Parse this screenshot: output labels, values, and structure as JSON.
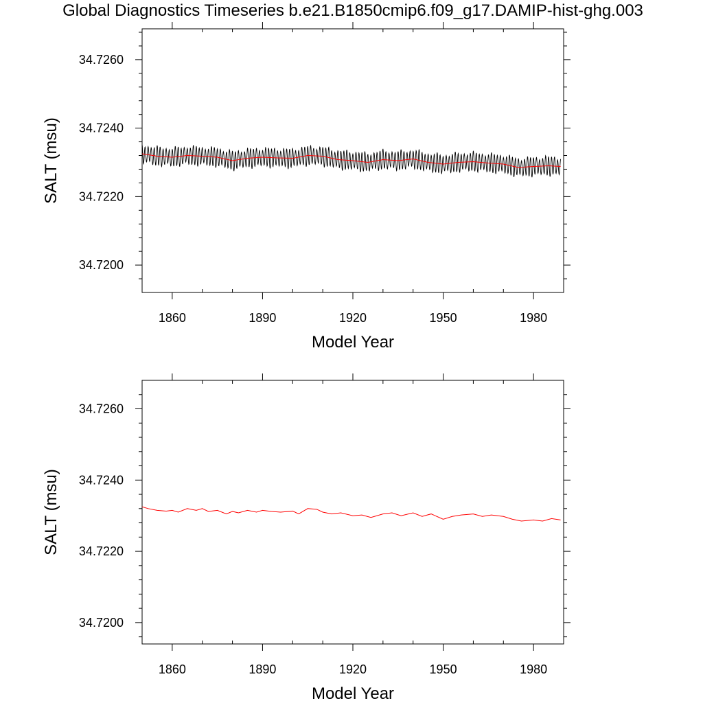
{
  "figure": {
    "title": "Global Diagnostics Timeseries b.e21.B1850cmip6.f09_g17.DAMIP-hist-ghg.003"
  },
  "colors": {
    "monthly_line": "#000000",
    "annual_line": "#ff0000",
    "frame": "#000000",
    "background": "#ffffff"
  },
  "chart_data": [
    {
      "type": "line",
      "xlabel": "Model Year",
      "ylabel": "SALT (msu)",
      "xlim": [
        1850,
        1990
      ],
      "ylim": [
        34.7192,
        34.7269
      ],
      "x_ticks": [
        1860,
        1890,
        1920,
        1950,
        1980
      ],
      "x_tick_labels": [
        "1860",
        "1890",
        "1920",
        "1950",
        "1980"
      ],
      "y_ticks": [
        34.72,
        34.722,
        34.724,
        34.726
      ],
      "y_tick_labels": [
        "34.7200",
        "34.7220",
        "34.7240",
        "34.7260"
      ],
      "grid": false,
      "legend": "none",
      "series": [
        {
          "key": "monthly",
          "resolution": "monthly",
          "seasonal_amplitude": 0.00025,
          "x": [
            1850,
            1855,
            1860,
            1865,
            1870,
            1875,
            1880,
            1885,
            1890,
            1895,
            1900,
            1905,
            1910,
            1915,
            1920,
            1925,
            1930,
            1935,
            1940,
            1945,
            1950,
            1955,
            1960,
            1965,
            1970,
            1975,
            1980,
            1985,
            1989
          ],
          "y": [
            34.72325,
            34.72318,
            34.72315,
            34.7232,
            34.72318,
            34.72315,
            34.72305,
            34.72312,
            34.72315,
            34.72313,
            34.72312,
            34.7232,
            34.72318,
            34.72308,
            34.72305,
            34.723,
            34.72308,
            34.72305,
            34.7231,
            34.723,
            34.72295,
            34.723,
            34.72302,
            34.72298,
            34.72295,
            34.72285,
            34.72288,
            34.7229,
            34.72288
          ]
        },
        {
          "key": "annual",
          "resolution": "annual",
          "x": [
            1850,
            1855,
            1860,
            1865,
            1870,
            1875,
            1880,
            1885,
            1890,
            1895,
            1900,
            1905,
            1910,
            1915,
            1920,
            1925,
            1930,
            1935,
            1940,
            1945,
            1950,
            1955,
            1960,
            1965,
            1970,
            1975,
            1980,
            1985,
            1989
          ],
          "y": [
            34.72325,
            34.72318,
            34.72315,
            34.7232,
            34.72318,
            34.72315,
            34.72305,
            34.72312,
            34.72315,
            34.72313,
            34.72312,
            34.7232,
            34.72318,
            34.72308,
            34.72305,
            34.723,
            34.72308,
            34.72305,
            34.7231,
            34.723,
            34.72295,
            34.723,
            34.72302,
            34.72298,
            34.72295,
            34.72285,
            34.72288,
            34.7229,
            34.72288
          ]
        }
      ]
    },
    {
      "type": "line",
      "xlabel": "Model Year",
      "ylabel": "SALT (msu)",
      "xlim": [
        1850,
        1990
      ],
      "ylim": [
        34.7194,
        34.7268
      ],
      "x_ticks": [
        1860,
        1890,
        1920,
        1950,
        1980
      ],
      "x_tick_labels": [
        "1860",
        "1890",
        "1920",
        "1950",
        "1980"
      ],
      "y_ticks": [
        34.72,
        34.722,
        34.724,
        34.726
      ],
      "y_tick_labels": [
        "34.7200",
        "34.7220",
        "34.7240",
        "34.7260"
      ],
      "grid": false,
      "legend": "none",
      "series": [
        {
          "key": "annual",
          "resolution": "annual",
          "x": [
            1850,
            1852,
            1855,
            1858,
            1860,
            1862,
            1865,
            1868,
            1870,
            1872,
            1875,
            1878,
            1880,
            1882,
            1885,
            1888,
            1890,
            1893,
            1896,
            1900,
            1902,
            1905,
            1908,
            1910,
            1913,
            1916,
            1920,
            1923,
            1926,
            1930,
            1933,
            1936,
            1940,
            1943,
            1946,
            1950,
            1953,
            1956,
            1960,
            1963,
            1966,
            1970,
            1973,
            1976,
            1980,
            1983,
            1986,
            1989
          ],
          "y": [
            34.72325,
            34.7232,
            34.72315,
            34.72313,
            34.72315,
            34.7231,
            34.7232,
            34.72315,
            34.7232,
            34.72312,
            34.72315,
            34.72305,
            34.72312,
            34.72308,
            34.72315,
            34.7231,
            34.72315,
            34.72312,
            34.7231,
            34.72313,
            34.72305,
            34.7232,
            34.72318,
            34.7231,
            34.72305,
            34.72308,
            34.723,
            34.72302,
            34.72295,
            34.72305,
            34.72308,
            34.723,
            34.72308,
            34.72298,
            34.72305,
            34.7229,
            34.72298,
            34.72302,
            34.72305,
            34.72298,
            34.72302,
            34.72298,
            34.7229,
            34.72285,
            34.72288,
            34.72285,
            34.72292,
            34.72288
          ]
        }
      ]
    }
  ]
}
